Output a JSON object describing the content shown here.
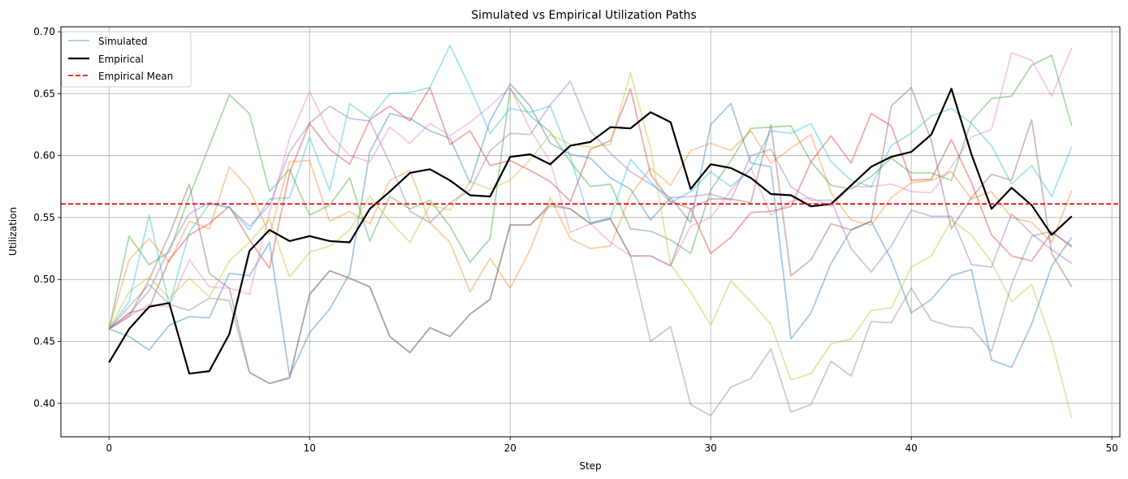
{
  "chart_data": {
    "type": "line",
    "title": "Simulated vs Empirical Utilization Paths",
    "xlabel": "Step",
    "ylabel": "Utilization",
    "xlim": [
      -2.4,
      50.4
    ],
    "ylim": [
      0.373,
      0.704
    ],
    "xticks": [
      0,
      10,
      20,
      30,
      40,
      50
    ],
    "yticks": [
      0.4,
      0.45,
      0.5,
      0.55,
      0.6,
      0.65,
      0.7
    ],
    "grid": true,
    "legend_position": "top-left",
    "legend": [
      "Simulated",
      "Empirical",
      "Empirical Mean"
    ],
    "empirical_mean": 0.561,
    "empirical": {
      "name": "Empirical",
      "color": "#000000",
      "y": [
        0.433,
        0.46,
        0.478,
        0.481,
        0.424,
        0.426,
        0.456,
        0.523,
        0.54,
        0.531,
        0.535,
        0.531,
        0.53,
        0.557,
        0.571,
        0.586,
        0.589,
        0.58,
        0.568,
        0.567,
        0.599,
        0.601,
        0.593,
        0.608,
        0.611,
        0.623,
        0.622,
        0.635,
        0.627,
        0.573,
        0.593,
        0.59,
        0.582,
        0.569,
        0.568,
        0.559,
        0.561,
        0.576,
        0.591,
        0.599,
        0.603,
        0.617,
        0.654,
        0.601,
        0.557,
        0.574,
        0.56,
        0.536,
        0.551
      ]
    },
    "simulated_label": "Simulated",
    "simulated": [
      {
        "color": "#1f77b4",
        "y": [
          0.46,
          0.454,
          0.443,
          0.463,
          0.47,
          0.469,
          0.505,
          0.503,
          0.53,
          0.422,
          0.457,
          0.476,
          0.505,
          0.603,
          0.634,
          0.63,
          0.62,
          0.614,
          0.578,
          0.628,
          0.658,
          0.64,
          0.61,
          0.601,
          0.598,
          0.582,
          0.573,
          0.548,
          0.566,
          0.546,
          0.625,
          0.642,
          0.594,
          0.591,
          0.452,
          0.473,
          0.513,
          0.54,
          0.547,
          0.516,
          0.473,
          0.484,
          0.503,
          0.508,
          0.435,
          0.429,
          0.464,
          0.511,
          0.534
        ]
      },
      {
        "color": "#ff7f0e",
        "y": [
          0.46,
          0.516,
          0.533,
          0.514,
          0.547,
          0.541,
          0.591,
          0.573,
          0.536,
          0.595,
          0.596,
          0.547,
          0.555,
          0.545,
          0.58,
          0.588,
          0.546,
          0.53,
          0.49,
          0.517,
          0.493,
          0.524,
          0.566,
          0.533,
          0.525,
          0.527,
          0.568,
          0.59,
          0.576,
          0.604,
          0.61,
          0.604,
          0.62,
          0.594,
          0.606,
          0.617,
          0.57,
          0.548,
          0.544,
          0.566,
          0.578,
          0.58,
          0.587,
          0.565,
          0.571,
          0.55,
          0.546,
          0.53,
          0.572
        ]
      },
      {
        "color": "#2ca02c",
        "y": [
          0.46,
          0.535,
          0.512,
          0.522,
          0.567,
          0.608,
          0.649,
          0.634,
          0.571,
          0.589,
          0.552,
          0.56,
          0.582,
          0.531,
          0.567,
          0.557,
          0.564,
          0.543,
          0.514,
          0.533,
          0.654,
          0.632,
          0.619,
          0.595,
          0.575,
          0.577,
          0.541,
          0.539,
          0.532,
          0.521,
          0.572,
          0.596,
          0.622,
          0.623,
          0.624,
          0.595,
          0.576,
          0.573,
          0.583,
          0.598,
          0.586,
          0.586,
          0.58,
          0.628,
          0.646,
          0.648,
          0.673,
          0.681,
          0.624
        ]
      },
      {
        "color": "#d62728",
        "y": [
          0.46,
          0.473,
          0.477,
          0.516,
          0.536,
          0.545,
          0.559,
          0.532,
          0.509,
          0.586,
          0.626,
          0.605,
          0.593,
          0.629,
          0.64,
          0.628,
          0.655,
          0.609,
          0.62,
          0.592,
          0.596,
          0.588,
          0.579,
          0.563,
          0.605,
          0.612,
          0.654,
          0.585,
          0.563,
          0.557,
          0.521,
          0.534,
          0.554,
          0.555,
          0.559,
          0.595,
          0.616,
          0.594,
          0.634,
          0.624,
          0.58,
          0.581,
          0.613,
          0.578,
          0.536,
          0.519,
          0.515,
          0.538,
          0.527
        ]
      },
      {
        "color": "#9467bd",
        "y": [
          0.46,
          0.472,
          0.491,
          0.525,
          0.553,
          0.562,
          0.558,
          0.543,
          0.56,
          0.603,
          0.626,
          0.64,
          0.63,
          0.628,
          0.594,
          0.555,
          0.546,
          0.562,
          0.572,
          0.604,
          0.618,
          0.617,
          0.641,
          0.66,
          0.62,
          0.602,
          0.587,
          0.577,
          0.566,
          0.567,
          0.569,
          0.564,
          0.6,
          0.605,
          0.575,
          0.564,
          0.564,
          0.525,
          0.506,
          0.527,
          0.556,
          0.551,
          0.551,
          0.512,
          0.51,
          0.553,
          0.537,
          0.524,
          0.513
        ]
      },
      {
        "color": "#8c564b",
        "y": [
          0.46,
          0.47,
          0.5,
          0.536,
          0.577,
          0.505,
          0.493,
          0.425,
          0.416,
          0.421,
          0.488,
          0.507,
          0.501,
          0.494,
          0.454,
          0.441,
          0.461,
          0.454,
          0.472,
          0.484,
          0.544,
          0.544,
          0.561,
          0.557,
          0.545,
          0.549,
          0.519,
          0.519,
          0.511,
          0.557,
          0.565,
          0.565,
          0.562,
          0.625,
          0.503,
          0.516,
          0.545,
          0.54,
          0.547,
          0.64,
          0.655,
          0.612,
          0.541,
          0.566,
          0.585,
          0.58,
          0.629,
          0.521,
          0.494
        ]
      },
      {
        "color": "#e377c2",
        "y": [
          0.46,
          0.47,
          0.48,
          0.478,
          0.516,
          0.494,
          0.493,
          0.488,
          0.554,
          0.614,
          0.652,
          0.618,
          0.6,
          0.595,
          0.623,
          0.61,
          0.626,
          0.616,
          0.627,
          0.64,
          0.655,
          0.621,
          0.595,
          0.538,
          0.545,
          0.53,
          0.519,
          0.519,
          0.511,
          0.543,
          0.55,
          0.572,
          0.59,
          0.552,
          0.563,
          0.566,
          0.559,
          0.575,
          0.575,
          0.577,
          0.571,
          0.57,
          0.591,
          0.615,
          0.621,
          0.683,
          0.677,
          0.648,
          0.687
        ]
      },
      {
        "color": "#7f7f7f",
        "y": [
          0.46,
          0.478,
          0.496,
          0.48,
          0.475,
          0.485,
          0.483,
          0.425,
          0.416,
          0.42,
          0.488,
          0.507,
          0.501,
          0.494,
          0.454,
          0.441,
          0.461,
          0.454,
          0.472,
          0.484,
          0.544,
          0.544,
          0.559,
          0.557,
          0.545,
          0.549,
          0.519,
          0.45,
          0.462,
          0.399,
          0.39,
          0.413,
          0.42,
          0.444,
          0.393,
          0.399,
          0.434,
          0.422,
          0.466,
          0.465,
          0.493,
          0.467,
          0.462,
          0.461,
          0.442,
          0.496,
          0.535,
          0.539,
          0.526
        ]
      },
      {
        "color": "#bcbd22",
        "y": [
          0.46,
          0.49,
          0.502,
          0.485,
          0.501,
          0.486,
          0.515,
          0.53,
          0.549,
          0.502,
          0.522,
          0.527,
          0.54,
          0.567,
          0.547,
          0.53,
          0.56,
          0.556,
          0.579,
          0.573,
          0.58,
          0.597,
          0.617,
          0.609,
          0.607,
          0.609,
          0.667,
          0.606,
          0.512,
          0.49,
          0.463,
          0.499,
          0.482,
          0.464,
          0.419,
          0.424,
          0.448,
          0.452,
          0.475,
          0.477,
          0.51,
          0.519,
          0.548,
          0.536,
          0.514,
          0.482,
          0.496,
          0.45,
          0.388
        ]
      },
      {
        "color": "#17becf",
        "y": [
          0.46,
          0.482,
          0.552,
          0.479,
          0.538,
          0.561,
          0.558,
          0.54,
          0.565,
          0.566,
          0.615,
          0.572,
          0.642,
          0.63,
          0.65,
          0.651,
          0.655,
          0.689,
          0.655,
          0.618,
          0.638,
          0.635,
          0.64,
          0.599,
          0.546,
          0.55,
          0.597,
          0.579,
          0.562,
          0.571,
          0.587,
          0.575,
          0.589,
          0.62,
          0.618,
          0.626,
          0.595,
          0.58,
          0.575,
          0.608,
          0.618,
          0.632,
          0.638,
          0.626,
          0.608,
          0.577,
          0.592,
          0.567,
          0.607
        ]
      }
    ]
  }
}
